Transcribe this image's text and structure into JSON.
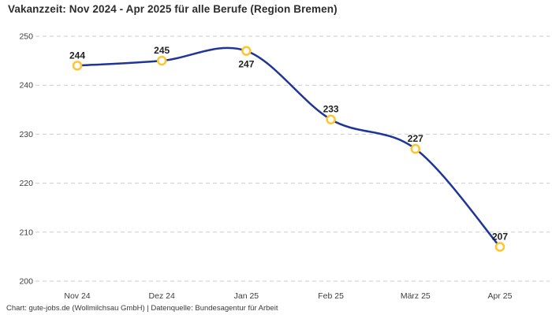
{
  "title": "Vakanzzeit: Nov 2024 - Apr 2025 für alle Berufe (Region Bremen)",
  "footer": "Chart: gute-jobs.de (Wollmilchsau GmbH) | Datenquelle: Bundesagentur für Arbeit",
  "chart_data": {
    "type": "line",
    "title": "Vakanzzeit: Nov 2024 - Apr 2025 für alle Berufe (Region Bremen)",
    "categories": [
      "Nov 24",
      "Dez 24",
      "Jan 25",
      "Feb 25",
      "März 25",
      "Apr 25"
    ],
    "values": [
      244,
      245,
      247,
      233,
      227,
      207
    ],
    "data_labels": [
      "244",
      "245",
      "247",
      "233",
      "227",
      "207"
    ],
    "label_positions": [
      "above",
      "above",
      "below",
      "above",
      "above",
      "above"
    ],
    "xlabel": "",
    "ylabel": "",
    "ylim": [
      200,
      250
    ],
    "yticks": [
      250,
      240,
      230,
      220,
      210,
      200
    ],
    "grid": "horizontal-dashed",
    "legend": "none",
    "line_style": "smooth-spline",
    "marker_style": "open-circle",
    "colors": {
      "line": "#1F3699",
      "marker_fill": "#FFFFFF",
      "marker_stroke": "#FFC42E",
      "grid": "#CBCBCB",
      "tick_text": "#3D3D3D",
      "data_label_text": "#1F1F1F"
    }
  }
}
